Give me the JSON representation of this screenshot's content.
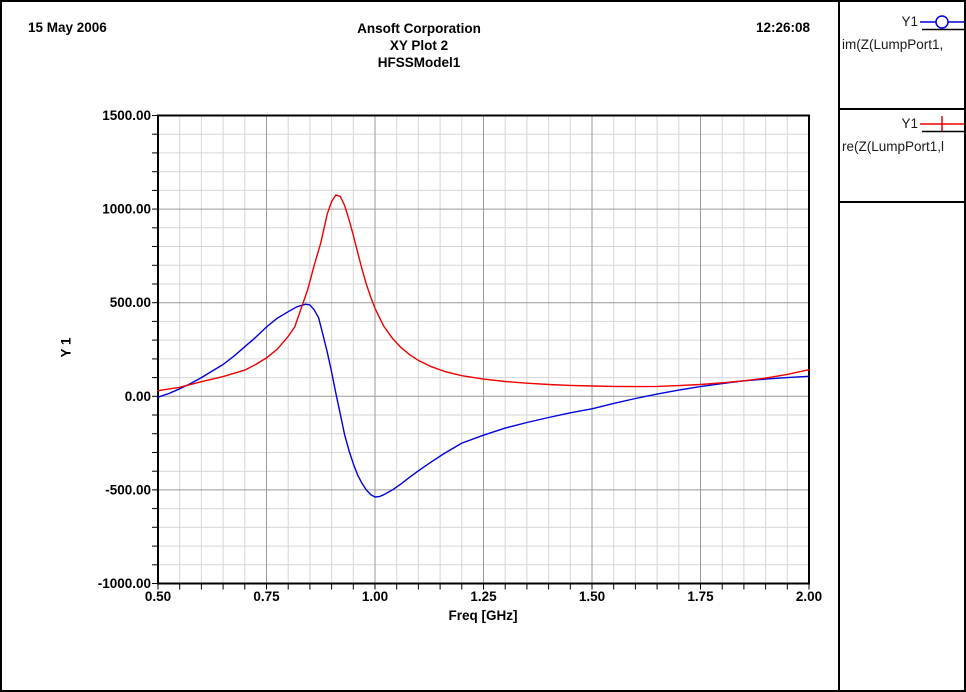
{
  "header": {
    "date": "15 May 2006",
    "company": "Ansoft Corporation",
    "plot_title": "XY Plot 2",
    "model": "HFSSModel1",
    "time": "12:26:08"
  },
  "legend": {
    "entries": [
      {
        "curve": "Y1",
        "expression": "im(Z(LumpPort1,",
        "color": "#0000dd",
        "marker": "circle-marker"
      },
      {
        "curve": "Y1",
        "expression": "re(Z(LumpPort1,l",
        "color": "#ee0000",
        "marker": "plus-marker"
      }
    ]
  },
  "chart_data": {
    "type": "line",
    "title": "XY Plot 2",
    "subtitle": "HFSSModel1",
    "xlabel": "Freq [GHz]",
    "ylabel": "Y 1",
    "xlim": [
      0.5,
      2.0
    ],
    "ylim": [
      -1000,
      1500
    ],
    "x_major": 0.25,
    "x_minor": 0.05,
    "y_major": 500,
    "y_minor": 100,
    "x_tick_labels": [
      "0.50",
      "0.75",
      "1.00",
      "1.25",
      "1.50",
      "1.75",
      "2.00"
    ],
    "y_tick_labels": [
      "1500.00",
      "1000.00",
      "500.00",
      "0.00",
      "-500.00",
      "-1000.00"
    ],
    "grid": true,
    "legend_position": "right",
    "colors": {
      "grid_minor": "#d6d6d6",
      "grid_major": "#9a9a9a",
      "axis": "#000000"
    },
    "series": [
      {
        "name": "im(Z(LumpPort1,",
        "color": "#0000dd",
        "marker": "circle",
        "points": [
          [
            0.5,
            -5
          ],
          [
            0.525,
            15
          ],
          [
            0.55,
            40
          ],
          [
            0.575,
            68
          ],
          [
            0.6,
            100
          ],
          [
            0.625,
            135
          ],
          [
            0.65,
            170
          ],
          [
            0.675,
            215
          ],
          [
            0.7,
            265
          ],
          [
            0.725,
            315
          ],
          [
            0.75,
            370
          ],
          [
            0.775,
            418
          ],
          [
            0.8,
            452
          ],
          [
            0.82,
            478
          ],
          [
            0.84,
            492
          ],
          [
            0.85,
            488
          ],
          [
            0.86,
            462
          ],
          [
            0.87,
            420
          ],
          [
            0.88,
            330
          ],
          [
            0.89,
            235
          ],
          [
            0.9,
            130
          ],
          [
            0.91,
            15
          ],
          [
            0.915,
            -40
          ],
          [
            0.92,
            -95
          ],
          [
            0.93,
            -205
          ],
          [
            0.94,
            -290
          ],
          [
            0.95,
            -360
          ],
          [
            0.96,
            -420
          ],
          [
            0.97,
            -465
          ],
          [
            0.98,
            -500
          ],
          [
            0.99,
            -525
          ],
          [
            1.0,
            -538
          ],
          [
            1.01,
            -536
          ],
          [
            1.02,
            -526
          ],
          [
            1.04,
            -500
          ],
          [
            1.06,
            -468
          ],
          [
            1.08,
            -432
          ],
          [
            1.1,
            -398
          ],
          [
            1.13,
            -350
          ],
          [
            1.16,
            -305
          ],
          [
            1.2,
            -250
          ],
          [
            1.25,
            -208
          ],
          [
            1.3,
            -170
          ],
          [
            1.35,
            -140
          ],
          [
            1.4,
            -113
          ],
          [
            1.45,
            -88
          ],
          [
            1.5,
            -67
          ],
          [
            1.55,
            -38
          ],
          [
            1.6,
            -12
          ],
          [
            1.65,
            12
          ],
          [
            1.7,
            33
          ],
          [
            1.75,
            52
          ],
          [
            1.8,
            68
          ],
          [
            1.85,
            83
          ],
          [
            1.9,
            92
          ],
          [
            1.95,
            100
          ],
          [
            2.0,
            107
          ]
        ]
      },
      {
        "name": "re(Z(LumpPort1,l",
        "color": "#ee0000",
        "marker": "plus",
        "points": [
          [
            0.5,
            30
          ],
          [
            0.55,
            48
          ],
          [
            0.6,
            78
          ],
          [
            0.65,
            105
          ],
          [
            0.7,
            140
          ],
          [
            0.725,
            170
          ],
          [
            0.75,
            205
          ],
          [
            0.775,
            252
          ],
          [
            0.8,
            320
          ],
          [
            0.815,
            370
          ],
          [
            0.83,
            470
          ],
          [
            0.845,
            570
          ],
          [
            0.86,
            700
          ],
          [
            0.875,
            820
          ],
          [
            0.89,
            975
          ],
          [
            0.9,
            1040
          ],
          [
            0.91,
            1076
          ],
          [
            0.92,
            1068
          ],
          [
            0.93,
            1020
          ],
          [
            0.94,
            945
          ],
          [
            0.95,
            860
          ],
          [
            0.96,
            770
          ],
          [
            0.97,
            680
          ],
          [
            0.98,
            600
          ],
          [
            0.99,
            530
          ],
          [
            1.0,
            470
          ],
          [
            1.02,
            375
          ],
          [
            1.04,
            310
          ],
          [
            1.06,
            260
          ],
          [
            1.08,
            222
          ],
          [
            1.1,
            192
          ],
          [
            1.13,
            158
          ],
          [
            1.16,
            133
          ],
          [
            1.2,
            110
          ],
          [
            1.25,
            92
          ],
          [
            1.3,
            79
          ],
          [
            1.35,
            70
          ],
          [
            1.4,
            63
          ],
          [
            1.45,
            58
          ],
          [
            1.5,
            55
          ],
          [
            1.55,
            53
          ],
          [
            1.6,
            52
          ],
          [
            1.65,
            53
          ],
          [
            1.7,
            57
          ],
          [
            1.75,
            63
          ],
          [
            1.8,
            72
          ],
          [
            1.85,
            83
          ],
          [
            1.9,
            97
          ],
          [
            1.95,
            117
          ],
          [
            2.0,
            142
          ]
        ]
      }
    ]
  }
}
